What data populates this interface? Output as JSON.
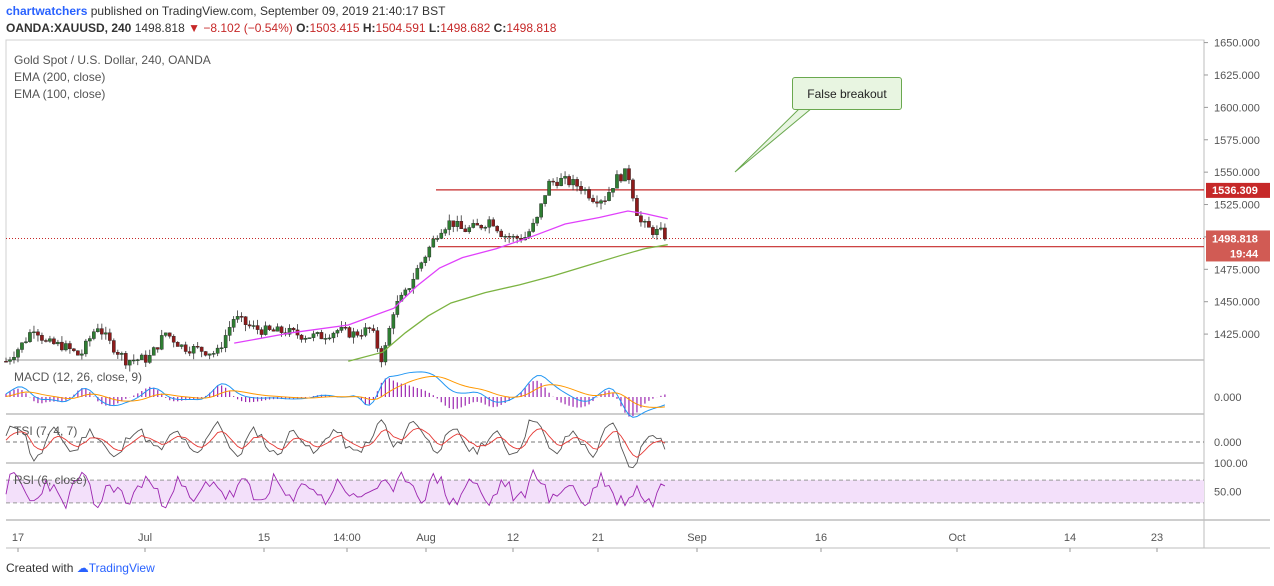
{
  "header": {
    "user": "chartwatchers",
    "published_text": "published on TradingView.com, September 09, 2019 21:40:17 BST",
    "symbol": "OANDA:XAUUSD, 240",
    "last": "1498.818",
    "change": "−8.102 (−0.54%)",
    "o_label": "O:",
    "o": "1503.415",
    "h_label": "H:",
    "h": "1504.591",
    "l_label": "L:",
    "l": "1498.682",
    "c_label": "C:",
    "c": "1498.818"
  },
  "legend": {
    "title": "Gold Spot / U.S. Dollar, 240, OANDA",
    "ema200": "EMA (200, close)",
    "ema100": "EMA (100, close)",
    "macd": "MACD (12, 26, close, 9)",
    "tsi": "TSI (7, 4, 7)",
    "rsi": "RSI (6, close)"
  },
  "annotation": "False breakout",
  "footer": {
    "created": "Created with",
    "brand": "TradingView"
  },
  "colors": {
    "up": "#26a69a",
    "down": "#c62828",
    "candle_up": "#2e7d32",
    "candle_down": "#8e1b1b",
    "ema100": "#e040fb",
    "ema200": "#7cb342",
    "macd": "#2196f3",
    "signal": "#ff9800",
    "hist": "#9c27b0",
    "tsi": "#555555",
    "tsi_signal": "#e53935",
    "rsi": "#9c27b0",
    "rsi_band": "#f3e0fa",
    "level": "#c62828"
  },
  "chart_data": {
    "type": "candlestick",
    "title": "Gold Spot / U.S. Dollar, 240, OANDA",
    "price_axis_ticks": [
      "1650.000",
      "1625.000",
      "1600.000",
      "1575.000",
      "1550.000",
      "1525.000",
      "1500.000",
      "1475.000",
      "1450.000",
      "1425.000"
    ],
    "price_range": [
      1405,
      1652
    ],
    "time_axis_ticks": [
      "17",
      "Jul",
      "15",
      "14:00",
      "Aug",
      "12",
      "21",
      "Sep",
      "16",
      "Oct",
      "14",
      "23"
    ],
    "levels": [
      {
        "label": "1536.309",
        "value": 1536.309
      },
      {
        "label": "1492.461",
        "value": 1492.461
      }
    ],
    "last_price": {
      "label": "1498.818",
      "value": 1498.818,
      "countdown": "19:44"
    },
    "price_path": [
      [
        0,
        1404
      ],
      [
        3,
        1418
      ],
      [
        5,
        1431
      ],
      [
        7,
        1418
      ],
      [
        10,
        1416
      ],
      [
        13,
        1408
      ],
      [
        16,
        1432
      ],
      [
        18,
        1419
      ],
      [
        21,
        1405
      ],
      [
        25,
        1406
      ],
      [
        28,
        1426
      ],
      [
        31,
        1415
      ],
      [
        34,
        1413
      ],
      [
        37,
        1410
      ],
      [
        40,
        1438
      ],
      [
        43,
        1430
      ],
      [
        46,
        1427
      ],
      [
        49,
        1427
      ],
      [
        52,
        1424
      ],
      [
        55,
        1423
      ],
      [
        58,
        1428
      ],
      [
        61,
        1425
      ],
      [
        64,
        1429
      ],
      [
        66,
        1404
      ],
      [
        68,
        1445
      ],
      [
        70,
        1456
      ],
      [
        72,
        1474
      ],
      [
        74,
        1490
      ],
      [
        76,
        1506
      ],
      [
        78,
        1512
      ],
      [
        80,
        1505
      ],
      [
        83,
        1508
      ],
      [
        85,
        1514
      ],
      [
        87,
        1502
      ],
      [
        89,
        1499
      ],
      [
        91,
        1500
      ],
      [
        93,
        1512
      ],
      [
        95,
        1541
      ],
      [
        97,
        1544
      ],
      [
        99,
        1542
      ],
      [
        101,
        1538
      ],
      [
        103,
        1530
      ],
      [
        105,
        1530
      ],
      [
        107,
        1545
      ],
      [
        109,
        1550
      ],
      [
        111,
        1512
      ],
      [
        113,
        1505
      ],
      [
        115,
        1503
      ],
      [
        116,
        1499
      ]
    ],
    "x_domain": [
      0,
      210
    ],
    "ema100": [
      [
        40,
        1418
      ],
      [
        50,
        1426
      ],
      [
        60,
        1432
      ],
      [
        68,
        1445
      ],
      [
        72,
        1462
      ],
      [
        76,
        1476
      ],
      [
        80,
        1484
      ],
      [
        86,
        1491
      ],
      [
        92,
        1500
      ],
      [
        98,
        1510
      ],
      [
        104,
        1515
      ],
      [
        109,
        1520
      ],
      [
        112,
        1518
      ],
      [
        116,
        1514
      ]
    ],
    "ema200": [
      [
        60,
        1404
      ],
      [
        66,
        1411
      ],
      [
        70,
        1426
      ],
      [
        74,
        1439
      ],
      [
        78,
        1449
      ],
      [
        84,
        1457
      ],
      [
        90,
        1463
      ],
      [
        96,
        1470
      ],
      [
        102,
        1478
      ],
      [
        108,
        1486
      ],
      [
        112,
        1491
      ],
      [
        116,
        1494
      ]
    ],
    "macd_zero_label": "0.000",
    "tsi_zero_label": "0.000",
    "rsi_ticks": [
      "100.00",
      "50.00"
    ],
    "rsi_band": [
      30,
      70
    ]
  }
}
